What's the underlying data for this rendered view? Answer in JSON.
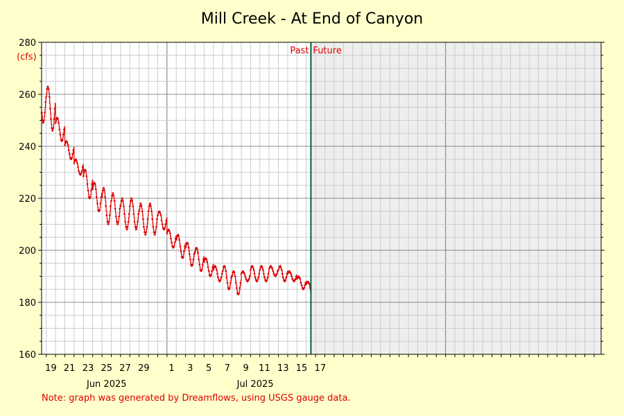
{
  "chart_data": {
    "type": "line",
    "title": "Mill Creek - At End of Canyon",
    "ylabel": "(cfs)",
    "ylim": [
      160,
      280
    ],
    "y_ticks": [
      160,
      180,
      200,
      220,
      240,
      260,
      280
    ],
    "x_range": [
      "2025-05-18T12:00",
      "2025-07-17T18:00"
    ],
    "x_day_labels": [
      {
        "date": "2025-05-19",
        "label": "19"
      },
      {
        "date": "2025-05-21",
        "label": "21"
      },
      {
        "date": "2025-05-23",
        "label": "23"
      },
      {
        "date": "2025-05-25",
        "label": "25"
      },
      {
        "date": "2025-05-27",
        "label": "27"
      },
      {
        "date": "2025-05-29",
        "label": "29"
      },
      {
        "date": "2025-06-01",
        "label": "1"
      },
      {
        "date": "2025-06-03",
        "label": "3"
      },
      {
        "date": "2025-06-05",
        "label": "5"
      },
      {
        "date": "2025-06-07",
        "label": "7"
      },
      {
        "date": "2025-06-09",
        "label": "9"
      },
      {
        "date": "2025-06-11",
        "label": "11"
      },
      {
        "date": "2025-06-13",
        "label": "13"
      },
      {
        "date": "2025-06-15",
        "label": "15"
      },
      {
        "date": "2025-06-17",
        "label": "17"
      }
    ],
    "x_month_labels": [
      {
        "date": "2025-05-25",
        "label": "Jun 2025"
      },
      {
        "date": "2025-06-10",
        "label": "Jul 2025"
      }
    ],
    "now": "2025-06-16T12:00",
    "past_label": "Past",
    "future_label": "Future",
    "series": [
      {
        "color": "#dd0000",
        "daily_low_high": [
          [
            "2025-05-18",
            249,
            265
          ],
          [
            "2025-05-19",
            246,
            263
          ],
          [
            "2025-05-20",
            242,
            251
          ],
          [
            "2025-05-21",
            235,
            242
          ],
          [
            "2025-05-22",
            229,
            235
          ],
          [
            "2025-05-23",
            220,
            231
          ],
          [
            "2025-05-24",
            215,
            226
          ],
          [
            "2025-05-25",
            210,
            224
          ],
          [
            "2025-05-26",
            210,
            222
          ],
          [
            "2025-05-27",
            208,
            220
          ],
          [
            "2025-05-28",
            208,
            220
          ],
          [
            "2025-05-29",
            206,
            218
          ],
          [
            "2025-05-30",
            206,
            218
          ],
          [
            "2025-05-31",
            208,
            215
          ],
          [
            "2025-06-01",
            201,
            208
          ],
          [
            "2025-06-02",
            197,
            206
          ],
          [
            "2025-06-03",
            194,
            203
          ],
          [
            "2025-06-04",
            192,
            201
          ],
          [
            "2025-06-05",
            190,
            197
          ],
          [
            "2025-06-06",
            188,
            194
          ],
          [
            "2025-06-07",
            185,
            194
          ],
          [
            "2025-06-08",
            183,
            192
          ],
          [
            "2025-06-09",
            188,
            192
          ],
          [
            "2025-06-10",
            188,
            194
          ],
          [
            "2025-06-11",
            188,
            194
          ],
          [
            "2025-06-12",
            190,
            194
          ],
          [
            "2025-06-13",
            188,
            194
          ],
          [
            "2025-06-14",
            188,
            192
          ],
          [
            "2025-06-15",
            185,
            190
          ],
          [
            "2025-06-16",
            183,
            188
          ]
        ]
      }
    ],
    "grid": true
  },
  "footer": {
    "note": "Note: graph was generated by Dreamflows, using USGS gauge data."
  }
}
